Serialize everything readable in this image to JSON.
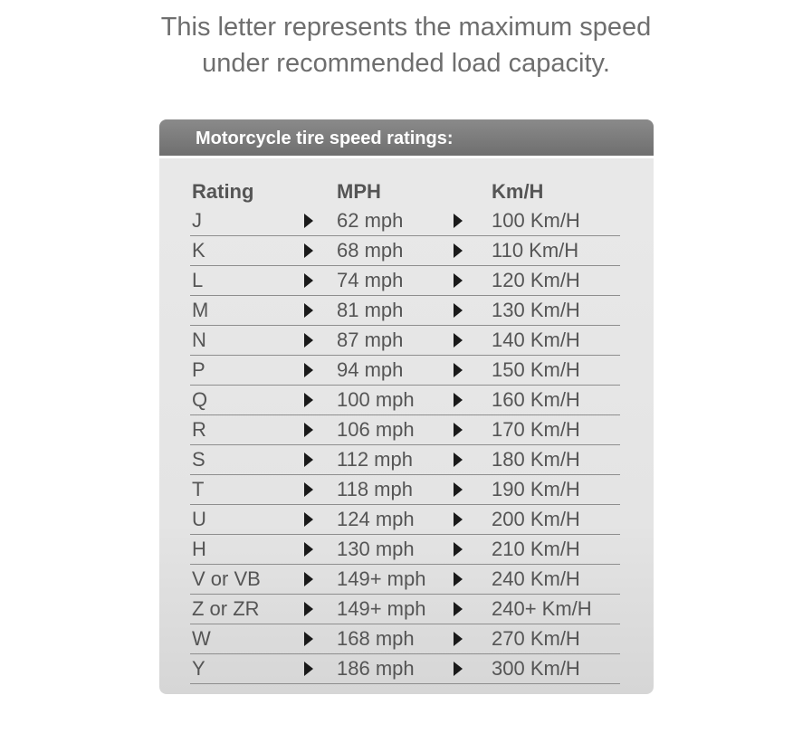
{
  "intro": {
    "line1": "This letter represents the maximum speed",
    "line2": "under recommended load capacity."
  },
  "panel": {
    "title": "Motorcycle tire speed ratings:",
    "columns": [
      "Rating",
      "MPH",
      "Km/H"
    ],
    "arrow_icon": "triangle-right-icon",
    "rows": [
      [
        "J",
        "62 mph",
        "100 Km/H"
      ],
      [
        "K",
        "68 mph",
        "110 Km/H"
      ],
      [
        "L",
        "74 mph",
        "120 Km/H"
      ],
      [
        "M",
        "81 mph",
        "130 Km/H"
      ],
      [
        "N",
        "87 mph",
        "140 Km/H"
      ],
      [
        "P",
        "94 mph",
        "150 Km/H"
      ],
      [
        "Q",
        "100 mph",
        "160 Km/H"
      ],
      [
        "R",
        "106 mph",
        "170 Km/H"
      ],
      [
        "S",
        "112 mph",
        "180 Km/H"
      ],
      [
        "T",
        "118 mph",
        "190 Km/H"
      ],
      [
        "U",
        "124 mph",
        "200 Km/H"
      ],
      [
        "H",
        "130 mph",
        "210 Km/H"
      ],
      [
        "V or VB",
        "149+ mph",
        "240 Km/H"
      ],
      [
        "Z or ZR",
        "149+ mph",
        "240+ Km/H"
      ],
      [
        "W",
        "168 mph",
        "270 Km/H"
      ],
      [
        "Y",
        "186 mph",
        "300 Km/H"
      ]
    ]
  }
}
